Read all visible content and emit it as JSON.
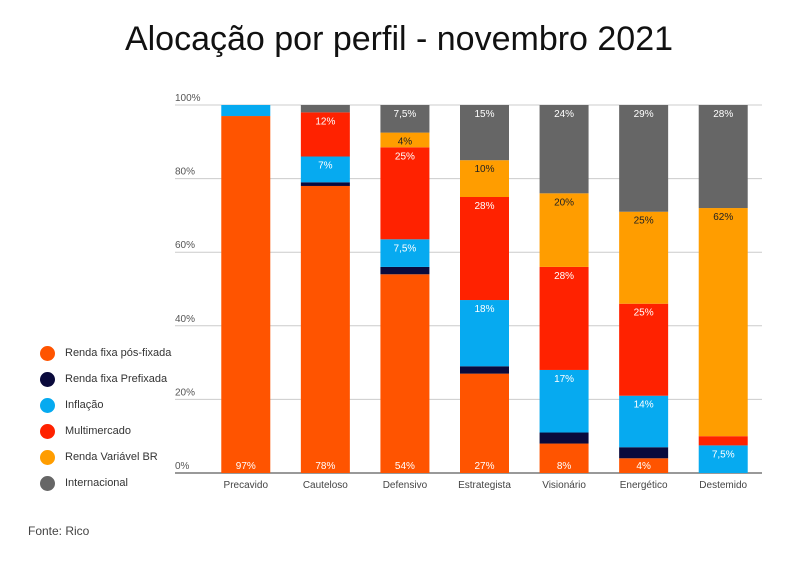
{
  "title": "Alocação por perfil - novembro 2021",
  "source": "Fonte: Rico",
  "chart_data": {
    "type": "bar",
    "stacked": true,
    "title": "Alocação por perfil - novembro 2021",
    "ylim": [
      0,
      100
    ],
    "yticks": [
      "0%",
      "20%",
      "40%",
      "60%",
      "80%",
      "100%"
    ],
    "ytick_values": [
      0,
      20,
      40,
      60,
      80,
      100
    ],
    "grid": true,
    "legend_position": "left",
    "categories": [
      "Precavido",
      "Cauteloso",
      "Defensivo",
      "Estrategista",
      "Visionário",
      "Energético",
      "Destemido"
    ],
    "series": [
      {
        "name": "Renda fixa pós-fixada",
        "color": "#ff5400",
        "values": [
          97,
          78,
          54,
          27,
          8,
          4,
          0
        ],
        "labels": [
          "97%",
          "78%",
          "54%",
          "27%",
          "8%",
          "4%",
          ""
        ]
      },
      {
        "name": "Renda fixa Prefixada",
        "color": "#0a0a3c",
        "values": [
          0,
          1,
          2,
          2,
          3,
          3,
          0
        ],
        "labels": [
          "",
          "",
          "",
          "",
          "",
          "",
          ""
        ]
      },
      {
        "name": "Inflação",
        "color": "#06aaf0",
        "values": [
          3,
          7,
          7.5,
          18,
          17,
          14,
          7.5
        ],
        "labels": [
          "",
          "7%",
          "7,5%",
          "18%",
          "17%",
          "14%",
          "7,5%"
        ]
      },
      {
        "name": "Multimercado",
        "color": "#ff2200",
        "values": [
          0,
          12,
          25,
          28,
          28,
          25,
          2.5
        ],
        "labels": [
          "",
          "12%",
          "25%",
          "28%",
          "28%",
          "25%",
          ""
        ]
      },
      {
        "name": "Renda Variável BR",
        "color": "#ff9d00",
        "values": [
          0,
          0,
          4,
          10,
          20,
          25,
          62
        ],
        "labels": [
          "",
          "",
          "4%",
          "10%",
          "20%",
          "25%",
          "62%"
        ]
      },
      {
        "name": "Internacional",
        "color": "#666666",
        "values": [
          0,
          2,
          7.5,
          15,
          24,
          29,
          28
        ],
        "labels": [
          "",
          "",
          "7,5%",
          "15%",
          "24%",
          "29%",
          "28%"
        ]
      }
    ]
  }
}
